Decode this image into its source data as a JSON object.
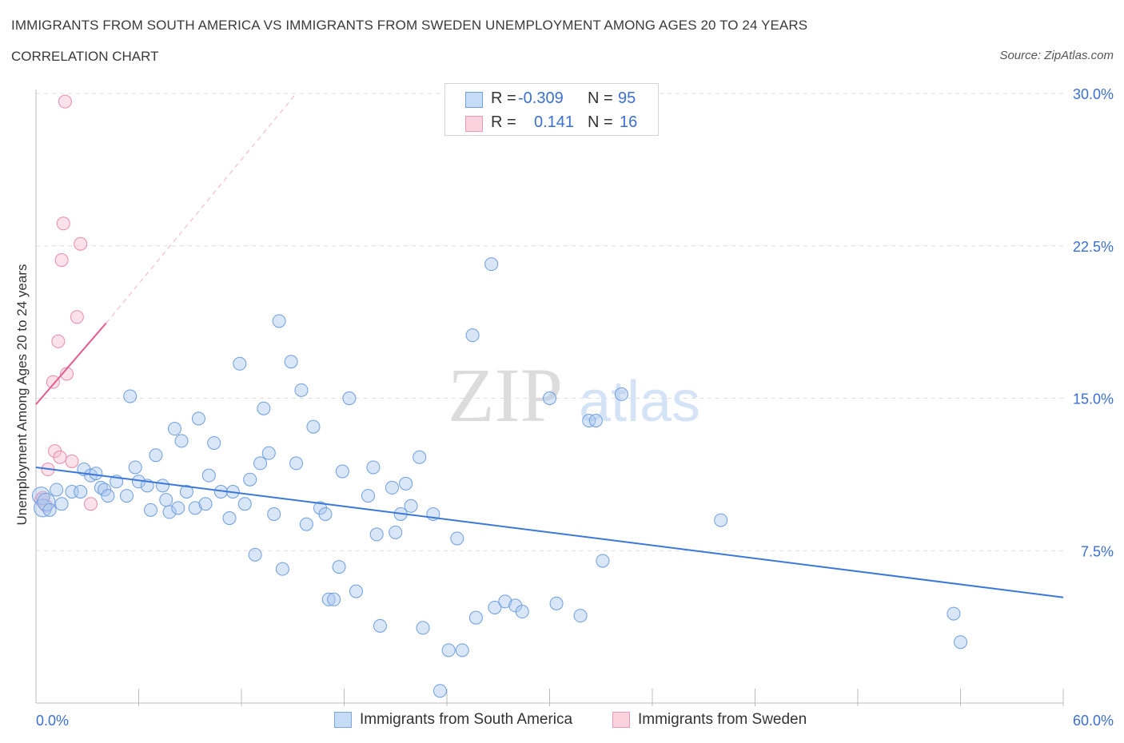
{
  "header": {
    "title": "IMMIGRANTS FROM SOUTH AMERICA VS IMMIGRANTS FROM SWEDEN UNEMPLOYMENT AMONG AGES 20 TO 24 YEARS",
    "subtitle": "CORRELATION CHART",
    "source": "Source: ZipAtlas.com"
  },
  "watermark": {
    "zip": "ZIP",
    "atlas": "atlas"
  },
  "legend": {
    "rows": [
      {
        "r_label": "R =",
        "r_value": "-0.309",
        "n_label": "N =",
        "n_value": "95",
        "color": "#a9c8f0",
        "border": "#6d9ee0"
      },
      {
        "r_label": "R =",
        "r_value": "0.141",
        "n_label": "N =",
        "n_value": "16",
        "color": "#f6bfd0",
        "border": "#e98aa8"
      }
    ]
  },
  "bottom_legend": {
    "items": [
      {
        "label": "Immigrants from South America",
        "color": "#c5dbf6",
        "border": "#7aa6e2"
      },
      {
        "label": "Immigrants from Sweden",
        "color": "#fbd3df",
        "border": "#ec9ab4"
      }
    ]
  },
  "chart_data": {
    "type": "scatter",
    "ylabel": "Unemployment Among Ages 20 to 24 years",
    "xlabel": "",
    "x_tick_labels": [
      "0.0%",
      "60.0%"
    ],
    "y_tick_labels": [
      "7.5%",
      "15.0%",
      "22.5%",
      "30.0%"
    ],
    "y_ticks": [
      7.5,
      15.0,
      22.5,
      30.0
    ],
    "xlim": [
      0,
      60
    ],
    "ylim": [
      0,
      30
    ],
    "grid": "horizontal dashed",
    "colors": {
      "blue": "#3a78d8",
      "pink": "#e55c8a",
      "tick_text": "#3b6fd4"
    },
    "series": [
      {
        "name": "Immigrants from South America",
        "fill": "rgba(170,200,240,0.45)",
        "stroke": "#6d9ee0",
        "trend": {
          "x": [
            0,
            60
          ],
          "y": [
            11.6,
            5.2
          ]
        },
        "points": [
          [
            0.3,
            10.2
          ],
          [
            0.4,
            9.6
          ],
          [
            0.6,
            9.9
          ],
          [
            0.8,
            9.5
          ],
          [
            1.2,
            10.5
          ],
          [
            1.5,
            9.8
          ],
          [
            2.1,
            10.4
          ],
          [
            2.6,
            10.4
          ],
          [
            2.8,
            11.5
          ],
          [
            3.2,
            11.2
          ],
          [
            3.5,
            11.3
          ],
          [
            3.8,
            10.6
          ],
          [
            4.0,
            10.5
          ],
          [
            4.2,
            10.2
          ],
          [
            4.7,
            10.9
          ],
          [
            5.3,
            10.2
          ],
          [
            5.5,
            15.1
          ],
          [
            5.8,
            11.6
          ],
          [
            6.0,
            10.9
          ],
          [
            6.5,
            10.7
          ],
          [
            6.7,
            9.5
          ],
          [
            7.0,
            12.2
          ],
          [
            7.4,
            10.7
          ],
          [
            7.6,
            10.0
          ],
          [
            7.8,
            9.4
          ],
          [
            8.1,
            13.5
          ],
          [
            8.3,
            9.6
          ],
          [
            8.5,
            12.9
          ],
          [
            8.8,
            10.4
          ],
          [
            9.3,
            9.6
          ],
          [
            9.5,
            14.0
          ],
          [
            9.9,
            9.8
          ],
          [
            10.1,
            11.2
          ],
          [
            10.4,
            12.8
          ],
          [
            10.8,
            10.4
          ],
          [
            11.3,
            9.1
          ],
          [
            11.5,
            10.4
          ],
          [
            11.9,
            16.7
          ],
          [
            12.2,
            9.8
          ],
          [
            12.5,
            11.0
          ],
          [
            12.8,
            7.3
          ],
          [
            13.1,
            11.8
          ],
          [
            13.3,
            14.5
          ],
          [
            13.6,
            12.3
          ],
          [
            13.9,
            9.3
          ],
          [
            14.2,
            18.8
          ],
          [
            14.4,
            6.6
          ],
          [
            14.9,
            16.8
          ],
          [
            15.2,
            11.8
          ],
          [
            15.5,
            15.4
          ],
          [
            15.8,
            8.8
          ],
          [
            16.2,
            13.6
          ],
          [
            16.6,
            9.6
          ],
          [
            16.9,
            9.3
          ],
          [
            17.1,
            5.1
          ],
          [
            17.4,
            5.1
          ],
          [
            17.7,
            6.7
          ],
          [
            17.9,
            11.4
          ],
          [
            18.3,
            15.0
          ],
          [
            18.7,
            5.5
          ],
          [
            19.4,
            10.2
          ],
          [
            19.7,
            11.6
          ],
          [
            19.9,
            8.3
          ],
          [
            20.1,
            3.8
          ],
          [
            20.8,
            10.6
          ],
          [
            21.0,
            8.4
          ],
          [
            21.3,
            9.3
          ],
          [
            21.6,
            10.8
          ],
          [
            21.9,
            9.7
          ],
          [
            22.4,
            12.1
          ],
          [
            22.6,
            3.7
          ],
          [
            23.2,
            9.3
          ],
          [
            23.6,
            0.6
          ],
          [
            24.1,
            2.6
          ],
          [
            24.6,
            8.1
          ],
          [
            24.9,
            2.6
          ],
          [
            25.5,
            18.1
          ],
          [
            25.7,
            4.2
          ],
          [
            26.6,
            21.6
          ],
          [
            26.8,
            4.7
          ],
          [
            27.4,
            5.0
          ],
          [
            28.0,
            4.8
          ],
          [
            28.4,
            4.5
          ],
          [
            30.0,
            15.0
          ],
          [
            30.4,
            4.9
          ],
          [
            31.8,
            4.3
          ],
          [
            32.3,
            13.9
          ],
          [
            32.7,
            13.9
          ],
          [
            33.1,
            7.0
          ],
          [
            34.2,
            15.2
          ],
          [
            40.0,
            9.0
          ],
          [
            53.6,
            4.4
          ],
          [
            54.0,
            3.0
          ]
        ]
      },
      {
        "name": "Immigrants from Sweden",
        "fill": "rgba(246,190,208,0.45)",
        "stroke": "#e98aa8",
        "trend": {
          "x": [
            0,
            4.1
          ],
          "y": [
            14.7,
            18.7
          ]
        },
        "trend_extension": {
          "x": [
            4.1,
            15.2
          ],
          "y": [
            18.7,
            30.0
          ]
        },
        "points": [
          [
            0.3,
            10.0
          ],
          [
            0.4,
            10.1
          ],
          [
            0.6,
            9.7
          ],
          [
            0.7,
            11.5
          ],
          [
            1.0,
            15.8
          ],
          [
            1.1,
            12.4
          ],
          [
            1.3,
            17.8
          ],
          [
            1.4,
            12.1
          ],
          [
            1.5,
            21.8
          ],
          [
            1.6,
            23.6
          ],
          [
            1.7,
            29.6
          ],
          [
            1.8,
            16.2
          ],
          [
            2.1,
            11.9
          ],
          [
            2.4,
            19.0
          ],
          [
            2.6,
            22.6
          ],
          [
            3.2,
            9.8
          ]
        ]
      }
    ]
  }
}
